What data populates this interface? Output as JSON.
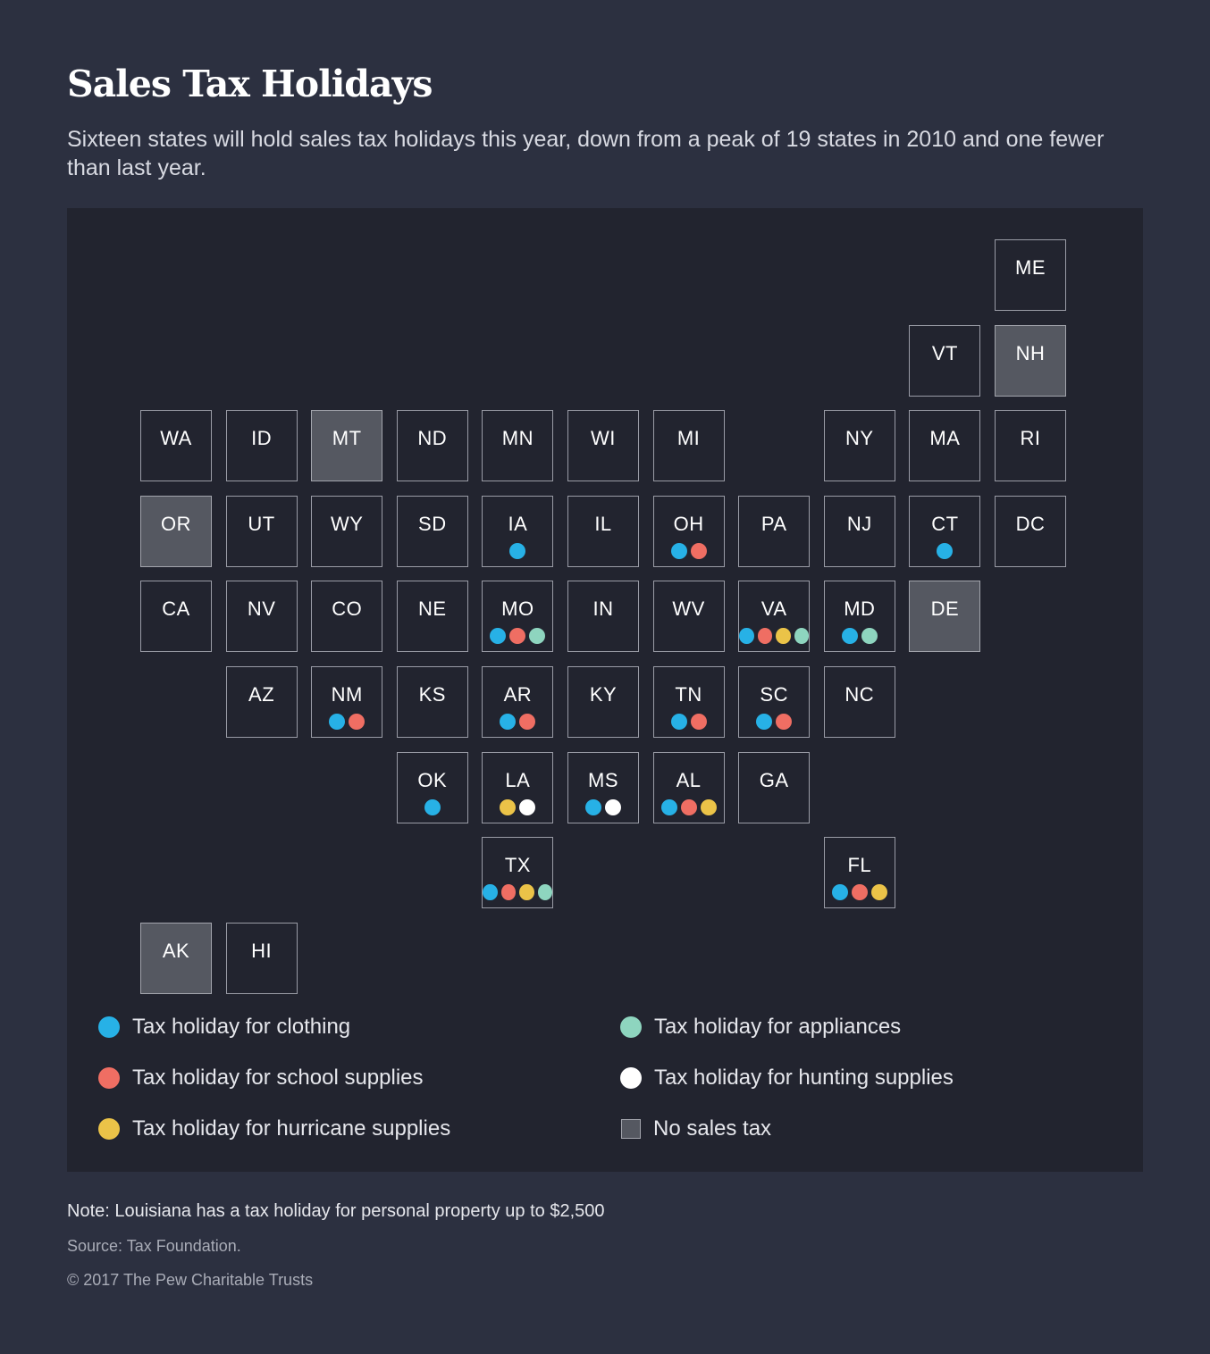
{
  "title": "Sales Tax Holidays",
  "subtitle": "Sixteen states will hold sales tax holidays this year, down from a peak of 19 states in 2010 and one fewer than last year.",
  "colors": {
    "clothing": "#27b1e6",
    "school": "#ef6e63",
    "hurricane": "#ebc348",
    "appliances": "#8ed5bf",
    "hunting": "#ffffff"
  },
  "legend": {
    "clothing": "Tax holiday for clothing",
    "school": "Tax holiday for school supplies",
    "hurricane": "Tax holiday for hurricane supplies",
    "appliances": "Tax holiday for appliances",
    "hunting": "Tax holiday for hunting supplies",
    "nosales": "No sales tax"
  },
  "states": [
    {
      "abbr": "ME",
      "row": 0,
      "col": 10,
      "holidays": []
    },
    {
      "abbr": "VT",
      "row": 1,
      "col": 9,
      "holidays": []
    },
    {
      "abbr": "NH",
      "row": 1,
      "col": 10,
      "no_sales_tax": true,
      "holidays": []
    },
    {
      "abbr": "WA",
      "row": 2,
      "col": 0,
      "holidays": []
    },
    {
      "abbr": "ID",
      "row": 2,
      "col": 1,
      "holidays": []
    },
    {
      "abbr": "MT",
      "row": 2,
      "col": 2,
      "no_sales_tax": true,
      "holidays": []
    },
    {
      "abbr": "ND",
      "row": 2,
      "col": 3,
      "holidays": []
    },
    {
      "abbr": "MN",
      "row": 2,
      "col": 4,
      "holidays": []
    },
    {
      "abbr": "WI",
      "row": 2,
      "col": 5,
      "holidays": []
    },
    {
      "abbr": "MI",
      "row": 2,
      "col": 6,
      "holidays": []
    },
    {
      "abbr": "NY",
      "row": 2,
      "col": 8,
      "holidays": []
    },
    {
      "abbr": "MA",
      "row": 2,
      "col": 9,
      "holidays": []
    },
    {
      "abbr": "RI",
      "row": 2,
      "col": 10,
      "holidays": []
    },
    {
      "abbr": "OR",
      "row": 3,
      "col": 0,
      "no_sales_tax": true,
      "holidays": []
    },
    {
      "abbr": "UT",
      "row": 3,
      "col": 1,
      "holidays": []
    },
    {
      "abbr": "WY",
      "row": 3,
      "col": 2,
      "holidays": []
    },
    {
      "abbr": "SD",
      "row": 3,
      "col": 3,
      "holidays": []
    },
    {
      "abbr": "IA",
      "row": 3,
      "col": 4,
      "holidays": [
        "clothing"
      ]
    },
    {
      "abbr": "IL",
      "row": 3,
      "col": 5,
      "holidays": []
    },
    {
      "abbr": "OH",
      "row": 3,
      "col": 6,
      "holidays": [
        "clothing",
        "school"
      ]
    },
    {
      "abbr": "PA",
      "row": 3,
      "col": 7,
      "holidays": []
    },
    {
      "abbr": "NJ",
      "row": 3,
      "col": 8,
      "holidays": []
    },
    {
      "abbr": "CT",
      "row": 3,
      "col": 9,
      "holidays": [
        "clothing"
      ]
    },
    {
      "abbr": "DC",
      "row": 3,
      "col": 10,
      "holidays": []
    },
    {
      "abbr": "CA",
      "row": 4,
      "col": 0,
      "holidays": []
    },
    {
      "abbr": "NV",
      "row": 4,
      "col": 1,
      "holidays": []
    },
    {
      "abbr": "CO",
      "row": 4,
      "col": 2,
      "holidays": []
    },
    {
      "abbr": "NE",
      "row": 4,
      "col": 3,
      "holidays": []
    },
    {
      "abbr": "MO",
      "row": 4,
      "col": 4,
      "holidays": [
        "clothing",
        "school",
        "appliances"
      ]
    },
    {
      "abbr": "IN",
      "row": 4,
      "col": 5,
      "holidays": []
    },
    {
      "abbr": "WV",
      "row": 4,
      "col": 6,
      "holidays": []
    },
    {
      "abbr": "VA",
      "row": 4,
      "col": 7,
      "holidays": [
        "clothing",
        "school",
        "hurricane",
        "appliances"
      ]
    },
    {
      "abbr": "MD",
      "row": 4,
      "col": 8,
      "holidays": [
        "clothing",
        "appliances"
      ]
    },
    {
      "abbr": "DE",
      "row": 4,
      "col": 9,
      "no_sales_tax": true,
      "holidays": []
    },
    {
      "abbr": "AZ",
      "row": 5,
      "col": 1,
      "holidays": []
    },
    {
      "abbr": "NM",
      "row": 5,
      "col": 2,
      "holidays": [
        "clothing",
        "school"
      ]
    },
    {
      "abbr": "KS",
      "row": 5,
      "col": 3,
      "holidays": []
    },
    {
      "abbr": "AR",
      "row": 5,
      "col": 4,
      "holidays": [
        "clothing",
        "school"
      ]
    },
    {
      "abbr": "KY",
      "row": 5,
      "col": 5,
      "holidays": []
    },
    {
      "abbr": "TN",
      "row": 5,
      "col": 6,
      "holidays": [
        "clothing",
        "school"
      ]
    },
    {
      "abbr": "SC",
      "row": 5,
      "col": 7,
      "holidays": [
        "clothing",
        "school"
      ]
    },
    {
      "abbr": "NC",
      "row": 5,
      "col": 8,
      "holidays": []
    },
    {
      "abbr": "OK",
      "row": 6,
      "col": 3,
      "holidays": [
        "clothing"
      ]
    },
    {
      "abbr": "LA",
      "row": 6,
      "col": 4,
      "holidays": [
        "hurricane",
        "hunting"
      ]
    },
    {
      "abbr": "MS",
      "row": 6,
      "col": 5,
      "holidays": [
        "clothing",
        "hunting"
      ]
    },
    {
      "abbr": "AL",
      "row": 6,
      "col": 6,
      "holidays": [
        "clothing",
        "school",
        "hurricane"
      ]
    },
    {
      "abbr": "GA",
      "row": 6,
      "col": 7,
      "holidays": []
    },
    {
      "abbr": "TX",
      "row": 7,
      "col": 4,
      "holidays": [
        "clothing",
        "school",
        "hurricane",
        "appliances"
      ]
    },
    {
      "abbr": "FL",
      "row": 7,
      "col": 8,
      "holidays": [
        "clothing",
        "school",
        "hurricane"
      ]
    },
    {
      "abbr": "AK",
      "row": 8,
      "col": 0,
      "no_sales_tax": true,
      "holidays": []
    },
    {
      "abbr": "HI",
      "row": 8,
      "col": 1,
      "holidays": []
    }
  ],
  "note": "Note: Louisiana has a tax holiday for personal property up to $2,500",
  "source": "Source: Tax Foundation.",
  "copyright": "© 2017 The Pew Charitable Trusts"
}
